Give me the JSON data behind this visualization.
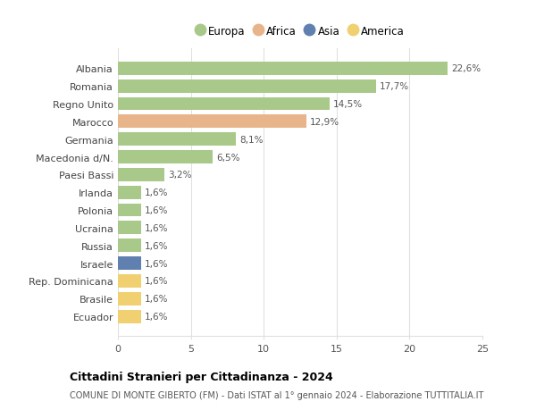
{
  "categories": [
    "Albania",
    "Romania",
    "Regno Unito",
    "Marocco",
    "Germania",
    "Macedonia d/N.",
    "Paesi Bassi",
    "Irlanda",
    "Polonia",
    "Ucraina",
    "Russia",
    "Israele",
    "Rep. Dominicana",
    "Brasile",
    "Ecuador"
  ],
  "values": [
    22.6,
    17.7,
    14.5,
    12.9,
    8.1,
    6.5,
    3.2,
    1.6,
    1.6,
    1.6,
    1.6,
    1.6,
    1.6,
    1.6,
    1.6
  ],
  "labels": [
    "22,6%",
    "17,7%",
    "14,5%",
    "12,9%",
    "8,1%",
    "6,5%",
    "3,2%",
    "1,6%",
    "1,6%",
    "1,6%",
    "1,6%",
    "1,6%",
    "1,6%",
    "1,6%",
    "1,6%"
  ],
  "continents": [
    "Europa",
    "Europa",
    "Europa",
    "Africa",
    "Europa",
    "Europa",
    "Europa",
    "Europa",
    "Europa",
    "Europa",
    "Europa",
    "Asia",
    "America",
    "America",
    "America"
  ],
  "colors": {
    "Europa": "#a8c98a",
    "Africa": "#e8b48a",
    "Asia": "#6080b0",
    "America": "#f0d070"
  },
  "legend_order": [
    "Europa",
    "Africa",
    "Asia",
    "America"
  ],
  "xlim": [
    0,
    25
  ],
  "xticks": [
    0,
    5,
    10,
    15,
    20,
    25
  ],
  "title": "Cittadini Stranieri per Cittadinanza - 2024",
  "subtitle": "COMUNE DI MONTE GIBERTO (FM) - Dati ISTAT al 1° gennaio 2024 - Elaborazione TUTTITALIA.IT",
  "background_color": "#ffffff",
  "grid_color": "#e0e0e0"
}
